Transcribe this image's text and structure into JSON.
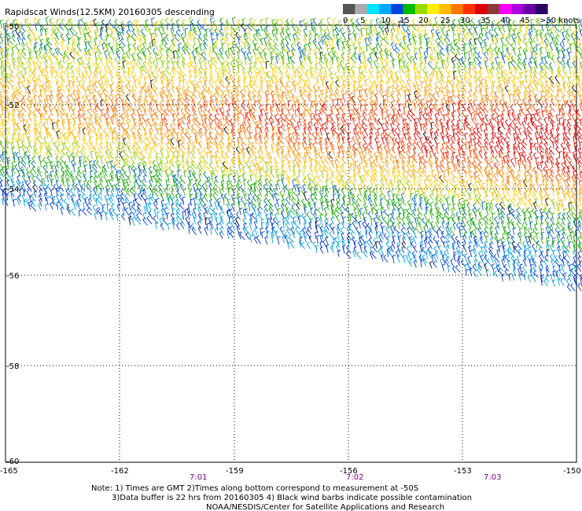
{
  "title": "Rapidscat Winds(12.5KM) 20160305 descending",
  "colors": {
    "scale": [
      "#555555",
      "#aaaaaa",
      "#00e5ff",
      "#00aaff",
      "#0044dd",
      "#00bb00",
      "#99dd00",
      "#ffee00",
      "#ffbb00",
      "#ff7700",
      "#ff3300",
      "#dd0000",
      "#8b3a3a",
      "#ff00ff",
      "#aa00dd",
      "#6a00aa",
      "#2a0060"
    ],
    "barbs_by_band": [
      "#00a0e0",
      "#0033cc",
      "#0060c8",
      "#00a000",
      "#3cb000",
      "#88cc00",
      "#ffd000",
      "#ffb000",
      "#ff8800",
      "#ff4400",
      "#e00000"
    ],
    "contamination": "#000000"
  },
  "legend": {
    "labels": [
      "0",
      "5",
      "10",
      "15",
      "20",
      "25",
      "30",
      "35",
      "40",
      "45",
      ">50 knots"
    ]
  },
  "axes": {
    "lat_labels": [
      "-50",
      "-52",
      "-54",
      "-56",
      "-58",
      "-60"
    ],
    "lon_labels": [
      "-165",
      "-162",
      "-159",
      "-156",
      "-153",
      "-150"
    ],
    "time_labels": [
      "7:01",
      "7:02",
      "7:03"
    ]
  },
  "notes": {
    "line1": "Note: 1) Times are GMT 2)Times along bottom correspond to measurement at -50S",
    "line2": "3)Data buffer is 22 hrs from 20160305 4) Black wind barbs indicate possible contamination",
    "line3": "NOAA/NESDIS/Center for Satellite Applications and Research"
  }
}
